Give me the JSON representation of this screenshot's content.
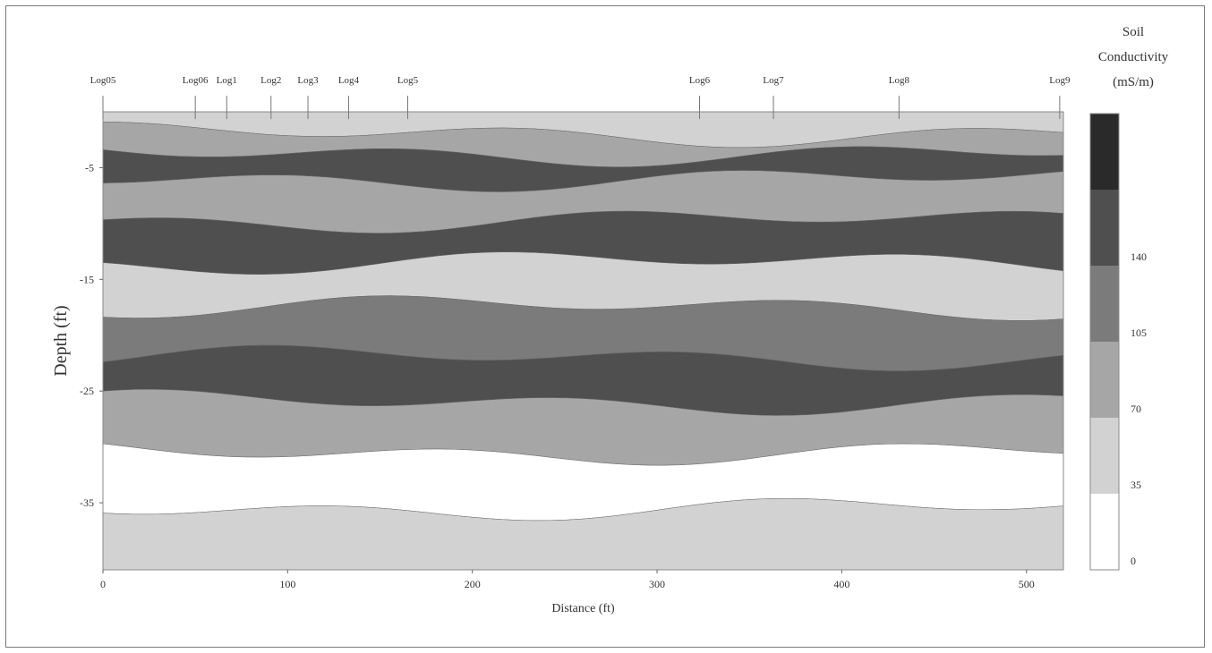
{
  "chart_data": {
    "type": "heatmap",
    "xlabel": "Distance (ft)",
    "ylabel": "Depth  (ft)",
    "x_ticks": [
      0,
      100,
      200,
      300,
      400,
      500
    ],
    "y_ticks": [
      -5,
      -15,
      -25,
      -35
    ],
    "xlim": [
      0,
      520
    ],
    "ylim": [
      -41,
      0
    ],
    "logs": [
      {
        "name": "Log05",
        "x": 0
      },
      {
        "name": "Log06",
        "x": 50
      },
      {
        "name": "Log1",
        "x": 67
      },
      {
        "name": "Log2",
        "x": 91
      },
      {
        "name": "Log3",
        "x": 111
      },
      {
        "name": "Log4",
        "x": 133
      },
      {
        "name": "Log5",
        "x": 165
      },
      {
        "name": "Log6",
        "x": 323
      },
      {
        "name": "Log7",
        "x": 363
      },
      {
        "name": "Log8",
        "x": 431
      },
      {
        "name": "Log9",
        "x": 518
      }
    ],
    "colorbar": {
      "title_lines": [
        "Soil",
        "Conductivity",
        "(mS/m)"
      ],
      "tick_labels": [
        "0",
        "35",
        "70",
        "105",
        "140"
      ],
      "bins": [
        {
          "range": [
            0,
            35
          ],
          "color": "#ffffff"
        },
        {
          "range": [
            35,
            70
          ],
          "color": "#d2d2d2"
        },
        {
          "range": [
            70,
            105
          ],
          "color": "#a6a6a6"
        },
        {
          "range": [
            105,
            140
          ],
          "color": "#7b7b7b"
        },
        {
          "range": [
            140,
            175
          ],
          "color": "#4f4f4f"
        },
        {
          "range": [
            175,
            210
          ],
          "color": "#2a2a2a"
        }
      ]
    },
    "layers": [
      {
        "depth": -1,
        "level": 1
      },
      {
        "depth": -3,
        "level": 2
      },
      {
        "depth": -4.5,
        "level": 4
      },
      {
        "depth": -7.5,
        "level": 2
      },
      {
        "depth": -12,
        "level": 4
      },
      {
        "depth": -15,
        "level": 1
      },
      {
        "depth": -20,
        "level": 3
      },
      {
        "depth": -24,
        "level": 4
      },
      {
        "depth": -28,
        "level": 2
      },
      {
        "depth": -33,
        "level": 0
      },
      {
        "depth": -38,
        "level": 1
      }
    ]
  }
}
